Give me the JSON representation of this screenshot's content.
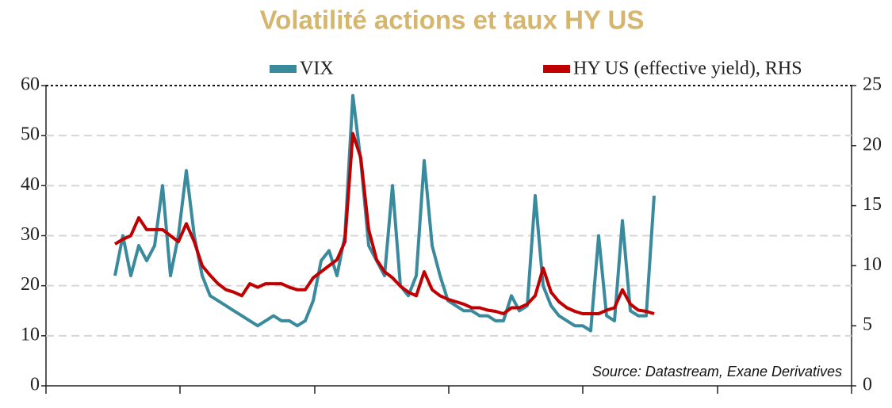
{
  "chart_data": {
    "type": "line",
    "title": "Volatilité actions et taux HY US",
    "annotation": "Source: Datastream, Exane Derivatives",
    "categories": [
      null,
      null,
      null,
      null,
      null,
      null,
      null,
      null,
      null,
      null,
      null,
      null,
      null,
      null,
      null,
      null,
      null,
      null,
      null,
      null,
      null,
      null,
      null,
      null,
      null,
      null,
      null,
      null,
      null,
      null,
      null,
      null,
      null,
      null,
      null,
      null,
      null,
      null,
      null,
      null,
      null,
      null,
      null,
      null,
      null,
      null,
      null,
      null,
      null,
      null,
      null,
      null,
      null,
      null,
      null,
      null,
      null,
      null,
      null,
      null,
      null,
      null,
      null,
      null,
      null,
      null,
      null,
      null,
      null
    ],
    "series": [
      {
        "name": "VIX",
        "color": "#3a8a9e",
        "axis": "y",
        "values": [
          22,
          30,
          22,
          28,
          25,
          28,
          40,
          22,
          30,
          43,
          30,
          22,
          18,
          17,
          16,
          15,
          14,
          13,
          12,
          13,
          14,
          13,
          13,
          12,
          13,
          17,
          25,
          27,
          22,
          30,
          58,
          45,
          28,
          25,
          22,
          40,
          20,
          18,
          22,
          45,
          28,
          22,
          17,
          16,
          15,
          15,
          14,
          14,
          13,
          13,
          18,
          15,
          16,
          38,
          20,
          16,
          14,
          13,
          12,
          12,
          11,
          30,
          14,
          13,
          33,
          15,
          14,
          14,
          38
        ]
      },
      {
        "name": "HY US (effective yield), RHS",
        "color": "#c00000",
        "axis": "y2",
        "values": [
          11.8,
          12.2,
          12.5,
          14,
          13,
          13,
          13,
          12.5,
          12,
          13.5,
          12,
          10,
          9.2,
          8.5,
          8,
          7.8,
          7.5,
          8.5,
          8.2,
          8.5,
          8.5,
          8.5,
          8.2,
          8,
          8,
          9,
          9.5,
          10,
          10.5,
          12,
          21,
          19,
          13,
          10.5,
          9.5,
          9,
          8.3,
          7.8,
          7.5,
          9.5,
          8,
          7.5,
          7.2,
          7,
          6.8,
          6.5,
          6.5,
          6.3,
          6.2,
          6,
          6.5,
          6.5,
          6.8,
          7.5,
          9.8,
          7.8,
          7,
          6.5,
          6.2,
          6,
          6,
          6,
          6.3,
          6.5,
          8,
          6.8,
          6.3,
          6.2,
          6
        ]
      }
    ],
    "ylim": [
      0,
      60
    ],
    "yticks": [
      0,
      10,
      20,
      30,
      40,
      50,
      60
    ],
    "y2lim": [
      0,
      25
    ],
    "y2ticks": [
      0,
      5,
      10,
      15,
      20,
      25
    ],
    "grid": true
  }
}
